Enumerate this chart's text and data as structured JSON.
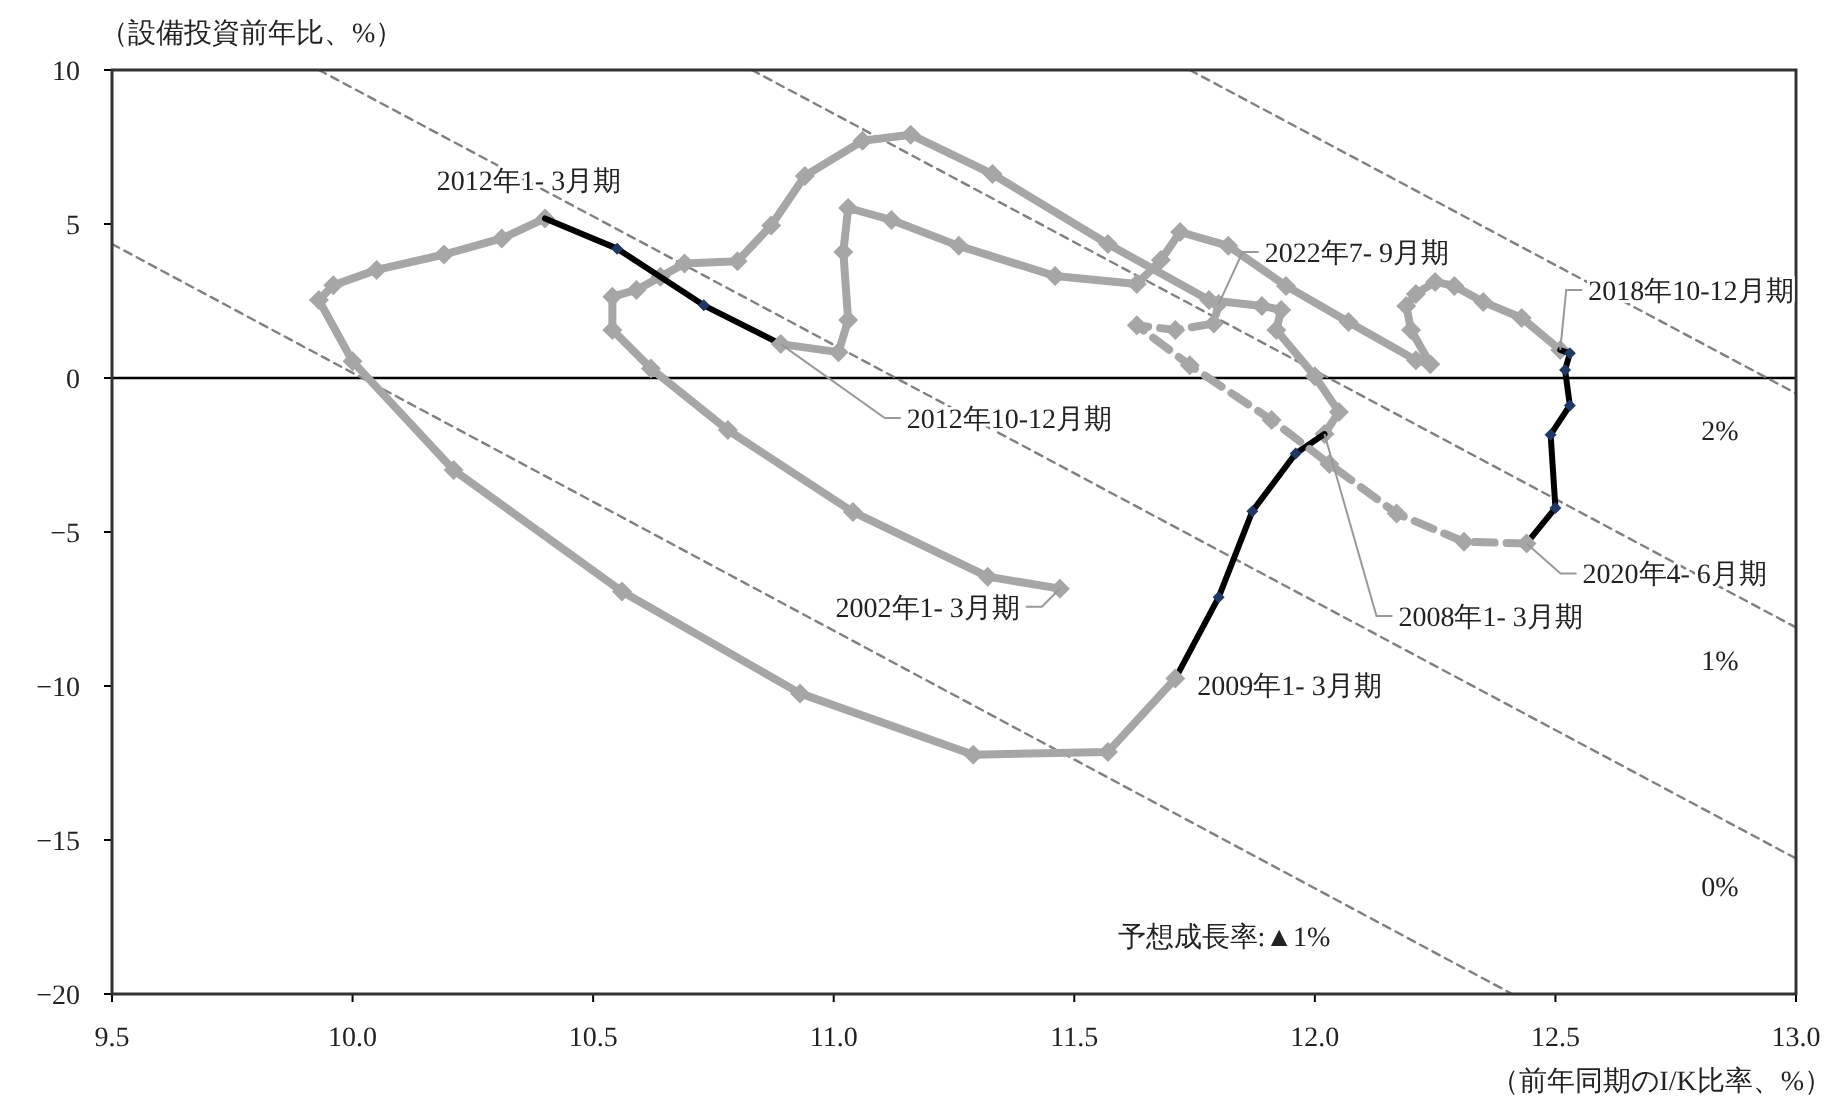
{
  "chart_data": {
    "type": "line",
    "xlabel": "（前年同期のI/K比率、%）",
    "ylabel": "（設備投資前年比、%）",
    "xlim": [
      9.5,
      13.0
    ],
    "ylim": [
      -20,
      10
    ],
    "xticks": [
      9.5,
      {
        "value": 10,
        "label": "10.0"
      },
      10.5,
      {
        "value": 11,
        "label": "11.0"
      },
      11.5,
      {
        "value": 12,
        "label": "12.0"
      },
      12.5,
      {
        "value": 13,
        "label": "13.0"
      }
    ],
    "yticks": [
      {
        "value": -20,
        "label": "−20"
      },
      {
        "value": -15,
        "label": "−15"
      },
      {
        "value": -10,
        "label": "−10"
      },
      {
        "value": -5,
        "label": "−5"
      },
      0,
      5,
      10
    ],
    "marker": "diamond",
    "ref_lines": [
      {
        "axis": "y",
        "value": 0,
        "color": "#000000"
      }
    ],
    "series": [
      {
        "type": "line",
        "color": "#808080",
        "line_style": "dashed",
        "marker": "none",
        "x": [
          9.5,
          12.41
        ],
        "values": [
          4.35,
          -20
        ]
      },
      {
        "type": "line",
        "color": "#808080",
        "line_style": "dashed",
        "marker": "none",
        "x": [
          9.93,
          13.0
        ],
        "values": [
          10,
          -15.6
        ]
      },
      {
        "type": "line",
        "color": "#808080",
        "line_style": "dashed",
        "marker": "none",
        "x": [
          10.83,
          13.0
        ],
        "values": [
          10,
          -8.1
        ]
      },
      {
        "type": "line",
        "color": "#808080",
        "line_style": "dashed",
        "marker": "none",
        "x": [
          11.74,
          13.0
        ],
        "values": [
          10,
          -0.5
        ]
      },
      {
        "type": "line",
        "color": "#a6a6a6",
        "line_style": "solid",
        "x": [
          11.47,
          11.32,
          11.04,
          10.78,
          10.62,
          10.54,
          10.54,
          10.59,
          10.64,
          10.69,
          10.8,
          10.87,
          10.94,
          11.06,
          11.16,
          11.33,
          11.57,
          11.78,
          11.89,
          11.93,
          11.92,
          12.0,
          12.05,
          12.02
        ],
        "values": [
          -6.84,
          -6.45,
          -4.35,
          -1.69,
          0.31,
          1.56,
          2.64,
          2.86,
          3.29,
          3.72,
          3.79,
          4.95,
          6.56,
          7.7,
          7.9,
          6.62,
          4.35,
          2.53,
          2.34,
          2.21,
          1.56,
          0.06,
          -1.1,
          -1.82
        ]
      },
      {
        "type": "line",
        "color": "#000000",
        "line_style": "solid",
        "x": [
          12.02,
          11.96,
          11.87,
          11.8,
          11.71
        ],
        "values": [
          -1.82,
          -2.45,
          -4.33,
          -7.12,
          -9.76
        ]
      },
      {
        "type": "line",
        "color": "#a6a6a6",
        "line_style": "solid",
        "x": [
          11.71,
          11.57,
          11.29,
          10.93,
          10.56,
          10.21,
          10.0,
          9.93,
          9.96,
          10.05,
          10.19,
          10.31,
          10.4
        ],
        "values": [
          -9.76,
          -12.14,
          -12.23,
          -10.24,
          -6.93,
          -2.99,
          0.54,
          2.53,
          3.01,
          3.51,
          4.01,
          4.53,
          5.18
        ]
      },
      {
        "type": "line",
        "color": "#000000",
        "line_style": "solid",
        "x": [
          10.4,
          10.55,
          10.73,
          10.89
        ],
        "values": [
          5.18,
          4.2,
          2.36,
          1.1
        ]
      },
      {
        "type": "line",
        "color": "#a6a6a6",
        "line_style": "solid",
        "x": [
          10.89,
          11.01,
          11.03,
          11.02,
          11.03,
          11.12,
          11.26,
          11.46,
          11.63,
          11.68,
          11.72,
          11.82,
          11.94,
          12.07,
          12.21,
          12.24,
          12.2,
          12.19,
          12.21,
          12.25,
          12.29,
          12.35,
          12.43,
          12.51
        ],
        "values": [
          1.1,
          0.84,
          1.88,
          4.09,
          5.52,
          5.13,
          4.29,
          3.31,
          3.05,
          3.83,
          4.74,
          4.29,
          2.99,
          1.82,
          0.58,
          0.45,
          1.56,
          2.34,
          2.73,
          3.12,
          2.99,
          2.47,
          1.95,
          0.91
        ]
      },
      {
        "type": "line",
        "color": "#000000",
        "line_style": "solid",
        "x": [
          12.51,
          12.53,
          12.52,
          12.53,
          12.49,
          12.5,
          12.44
        ],
        "values": [
          0.91,
          0.8,
          0.26,
          -0.89,
          -1.84,
          -4.22,
          -5.37
        ]
      },
      {
        "type": "line",
        "color": "#a6a6a6",
        "line_style": "dashed",
        "x": [
          12.44,
          12.31,
          12.17,
          12.03,
          11.91,
          11.74,
          11.63,
          11.71,
          11.79,
          11.8
        ],
        "values": [
          -5.37,
          -5.32,
          -4.4,
          -2.79,
          -1.36,
          0.41,
          1.71,
          1.56,
          1.77,
          2.4
        ]
      }
    ],
    "annotations": [
      {
        "text": "2012年1- 3月期",
        "x": 10.4,
        "y": 5.18
      },
      {
        "text": "2012年10-12月期",
        "x": 10.89,
        "y": 1.1
      },
      {
        "text": "2002年1- 3月期",
        "x": 11.47,
        "y": -6.84
      },
      {
        "text": "2009年1- 3月期",
        "x": 11.71,
        "y": -9.76
      },
      {
        "text": "2008年1- 3月期",
        "x": 12.02,
        "y": -1.82
      },
      {
        "text": "2020年4- 6月期",
        "x": 12.44,
        "y": -5.37
      },
      {
        "text": "2018年10-12月期",
        "x": 12.51,
        "y": 0.91
      },
      {
        "text": "2022年7- 9月期",
        "x": 11.8,
        "y": 2.4
      },
      "2%",
      "1%",
      "0%",
      "予想成長率:▲1%"
    ]
  }
}
